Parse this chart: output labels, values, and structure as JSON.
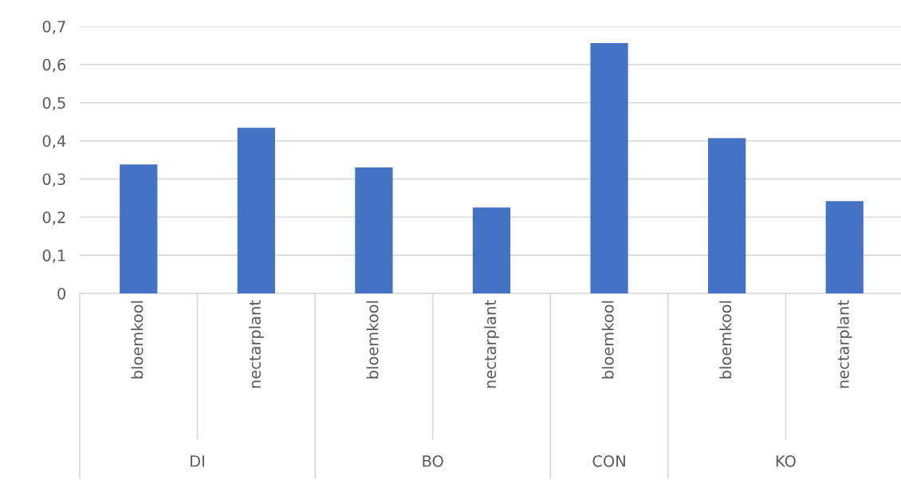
{
  "chart_data": {
    "type": "bar",
    "categories": [
      "bloemkool",
      "nectarplant",
      "bloemkool",
      "nectarplant",
      "bloemkool",
      "bloemkool",
      "nectarplant"
    ],
    "values": [
      0.338,
      0.434,
      0.33,
      0.225,
      0.656,
      0.407,
      0.242
    ],
    "color": "#4472c4",
    "ylim": [
      0,
      0.7
    ],
    "yticks": [
      0,
      {
        "value": 0.1,
        "label": "0,1"
      },
      {
        "value": 0.2,
        "label": "0,2"
      },
      {
        "value": 0.3,
        "label": "0,3"
      },
      {
        "value": 0.4,
        "label": "0,4"
      },
      {
        "value": 0.5,
        "label": "0,5"
      },
      {
        "value": 0.6,
        "label": "0,6"
      },
      {
        "value": 0.7,
        "label": "0,7"
      }
    ],
    "grid": "y",
    "annotations": [
      "DI",
      "BO",
      "CON",
      "KO"
    ]
  }
}
